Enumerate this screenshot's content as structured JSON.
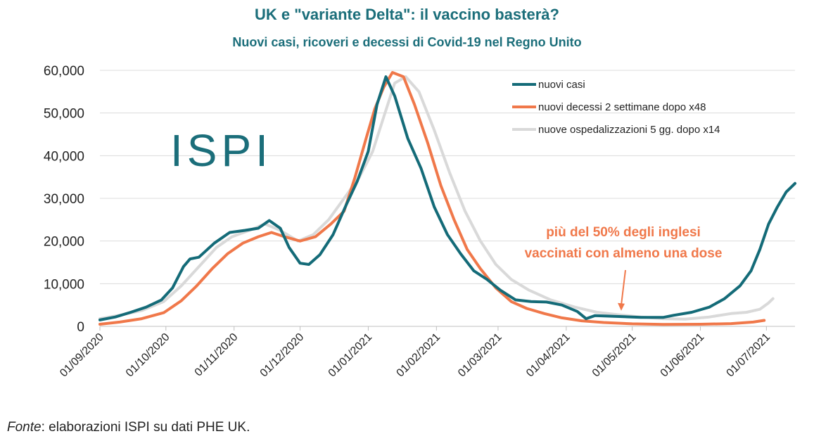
{
  "header": {
    "title": "UK e \"variante Delta\": il vaccino basterà?",
    "subtitle": "Nuovi casi, ricoveri e decessi di Covid-19 nel Regno Unito"
  },
  "footer": {
    "source_label": "Fonte",
    "source_text": ": elaborazioni ISPI su dati PHE UK."
  },
  "logo": {
    "text": "ISPI",
    "color": "#1b6e7a"
  },
  "chart_data": {
    "type": "line",
    "title": "UK e \"variante Delta\": il vaccino basterà?",
    "subtitle": "Nuovi casi, ricoveri e decessi di Covid-19 nel Regno Unito",
    "xlabel": "",
    "ylabel": "",
    "ylim": [
      0,
      60000
    ],
    "yticks": [
      0,
      10000,
      20000,
      30000,
      40000,
      50000,
      60000
    ],
    "ytick_labels": [
      "0",
      "10,000",
      "20,000",
      "30,000",
      "40,000",
      "50,000",
      "60,000"
    ],
    "xlim": [
      "2020-09-01",
      "2021-07-14"
    ],
    "xticks": [
      "2020-09-01",
      "2020-10-01",
      "2020-11-01",
      "2020-12-01",
      "2021-01-01",
      "2021-02-01",
      "2021-03-01",
      "2021-04-01",
      "2021-05-01",
      "2021-06-01",
      "2021-07-01"
    ],
    "xtick_labels": [
      "01/09/2020",
      "01/10/2020",
      "01/11/2020",
      "01/12/2020",
      "01/01/2021",
      "01/02/2021",
      "01/03/2021",
      "01/04/2021",
      "01/05/2021",
      "01/06/2021",
      "01/07/2021"
    ],
    "grid": true,
    "legend_position": "top-right",
    "series": [
      {
        "name": "nuovi casi",
        "color": "#146b78",
        "points": [
          [
            "2020-09-01",
            1500
          ],
          [
            "2020-09-08",
            2200
          ],
          [
            "2020-09-15",
            3300
          ],
          [
            "2020-09-22",
            4500
          ],
          [
            "2020-09-29",
            6200
          ],
          [
            "2020-10-04",
            9000
          ],
          [
            "2020-10-09",
            14000
          ],
          [
            "2020-10-12",
            15800
          ],
          [
            "2020-10-16",
            16200
          ],
          [
            "2020-10-23",
            19500
          ],
          [
            "2020-10-30",
            22000
          ],
          [
            "2020-11-06",
            22500
          ],
          [
            "2020-11-12",
            23000
          ],
          [
            "2020-11-17",
            24800
          ],
          [
            "2020-11-22",
            23000
          ],
          [
            "2020-11-26",
            18500
          ],
          [
            "2020-12-01",
            14800
          ],
          [
            "2020-12-05",
            14500
          ],
          [
            "2020-12-10",
            16800
          ],
          [
            "2020-12-16",
            21500
          ],
          [
            "2020-12-22",
            28500
          ],
          [
            "2020-12-27",
            34000
          ],
          [
            "2021-01-01",
            41000
          ],
          [
            "2021-01-05",
            52000
          ],
          [
            "2021-01-09",
            58500
          ],
          [
            "2021-01-13",
            54000
          ],
          [
            "2021-01-19",
            44000
          ],
          [
            "2021-01-25",
            37000
          ],
          [
            "2021-01-31",
            28000
          ],
          [
            "2021-02-06",
            21500
          ],
          [
            "2021-02-12",
            17000
          ],
          [
            "2021-02-18",
            13000
          ],
          [
            "2021-02-24",
            11000
          ],
          [
            "2021-03-02",
            8500
          ],
          [
            "2021-03-09",
            6200
          ],
          [
            "2021-03-16",
            5800
          ],
          [
            "2021-03-23",
            5700
          ],
          [
            "2021-03-30",
            5000
          ],
          [
            "2021-04-06",
            3500
          ],
          [
            "2021-04-10",
            1800
          ],
          [
            "2021-04-14",
            2500
          ],
          [
            "2021-04-25",
            2300
          ],
          [
            "2021-05-05",
            2100
          ],
          [
            "2021-05-15",
            2100
          ],
          [
            "2021-05-20",
            2600
          ],
          [
            "2021-05-28",
            3300
          ],
          [
            "2021-06-05",
            4500
          ],
          [
            "2021-06-12",
            6500
          ],
          [
            "2021-06-19",
            9500
          ],
          [
            "2021-06-24",
            13000
          ],
          [
            "2021-06-28",
            18000
          ],
          [
            "2021-07-02",
            24000
          ],
          [
            "2021-07-06",
            28000
          ],
          [
            "2021-07-10",
            31500
          ],
          [
            "2021-07-14",
            33500
          ]
        ]
      },
      {
        "name": "nuovi decessi 2 settimane dopo x48",
        "color": "#f0784a",
        "points": [
          [
            "2020-09-01",
            500
          ],
          [
            "2020-09-10",
            1000
          ],
          [
            "2020-09-20",
            1800
          ],
          [
            "2020-09-30",
            3200
          ],
          [
            "2020-10-08",
            6000
          ],
          [
            "2020-10-15",
            9500
          ],
          [
            "2020-10-22",
            13500
          ],
          [
            "2020-10-29",
            17000
          ],
          [
            "2020-11-05",
            19500
          ],
          [
            "2020-11-12",
            21000
          ],
          [
            "2020-11-18",
            22000
          ],
          [
            "2020-11-24",
            21000
          ],
          [
            "2020-12-01",
            20000
          ],
          [
            "2020-12-08",
            21000
          ],
          [
            "2020-12-15",
            24000
          ],
          [
            "2020-12-21",
            27000
          ],
          [
            "2020-12-26",
            35000
          ],
          [
            "2020-12-31",
            44000
          ],
          [
            "2021-01-04",
            51000
          ],
          [
            "2021-01-08",
            56000
          ],
          [
            "2021-01-12",
            59500
          ],
          [
            "2021-01-17",
            58500
          ],
          [
            "2021-01-22",
            52000
          ],
          [
            "2021-01-28",
            43000
          ],
          [
            "2021-02-03",
            33000
          ],
          [
            "2021-02-09",
            25000
          ],
          [
            "2021-02-15",
            18000
          ],
          [
            "2021-02-21",
            13500
          ],
          [
            "2021-02-28",
            9000
          ],
          [
            "2021-03-07",
            5800
          ],
          [
            "2021-03-14",
            4200
          ],
          [
            "2021-03-22",
            3000
          ],
          [
            "2021-03-30",
            2000
          ],
          [
            "2021-04-08",
            1300
          ],
          [
            "2021-04-18",
            900
          ],
          [
            "2021-05-01",
            600
          ],
          [
            "2021-05-15",
            450
          ],
          [
            "2021-06-01",
            500
          ],
          [
            "2021-06-15",
            650
          ],
          [
            "2021-06-25",
            1000
          ],
          [
            "2021-06-30",
            1400
          ]
        ]
      },
      {
        "name": "nuove ospedalizzazioni 5 gg. dopo x14",
        "color": "#d9d9d9",
        "points": [
          [
            "2020-09-01",
            1800
          ],
          [
            "2020-09-10",
            2600
          ],
          [
            "2020-09-20",
            3700
          ],
          [
            "2020-09-30",
            5800
          ],
          [
            "2020-10-08",
            9500
          ],
          [
            "2020-10-16",
            14000
          ],
          [
            "2020-10-24",
            18500
          ],
          [
            "2020-10-31",
            21000
          ],
          [
            "2020-11-08",
            22500
          ],
          [
            "2020-11-15",
            24000
          ],
          [
            "2020-11-22",
            22500
          ],
          [
            "2020-11-30",
            20000
          ],
          [
            "2020-12-07",
            21500
          ],
          [
            "2020-12-14",
            25000
          ],
          [
            "2020-12-21",
            30000
          ],
          [
            "2020-12-28",
            35000
          ],
          [
            "2021-01-03",
            41000
          ],
          [
            "2021-01-08",
            49000
          ],
          [
            "2021-01-13",
            57000
          ],
          [
            "2021-01-18",
            58500
          ],
          [
            "2021-01-24",
            55000
          ],
          [
            "2021-01-31",
            46000
          ],
          [
            "2021-02-07",
            36000
          ],
          [
            "2021-02-14",
            27000
          ],
          [
            "2021-02-21",
            20000
          ],
          [
            "2021-02-28",
            14500
          ],
          [
            "2021-03-07",
            11000
          ],
          [
            "2021-03-15",
            8500
          ],
          [
            "2021-03-25",
            6200
          ],
          [
            "2021-04-05",
            4500
          ],
          [
            "2021-04-15",
            3300
          ],
          [
            "2021-04-25",
            2700
          ],
          [
            "2021-05-05",
            2200
          ],
          [
            "2021-05-15",
            1800
          ],
          [
            "2021-05-25",
            1700
          ],
          [
            "2021-06-05",
            2200
          ],
          [
            "2021-06-15",
            3000
          ],
          [
            "2021-06-22",
            3300
          ],
          [
            "2021-06-28",
            4000
          ],
          [
            "2021-07-02",
            5500
          ],
          [
            "2021-07-04",
            6500
          ]
        ]
      }
    ],
    "annotation": {
      "lines": [
        "più del 50% degli inglesi",
        "vaccinati con almeno una dose"
      ],
      "arrow_target": [
        "2021-04-26",
        4000
      ],
      "color": "#f0784a"
    }
  }
}
